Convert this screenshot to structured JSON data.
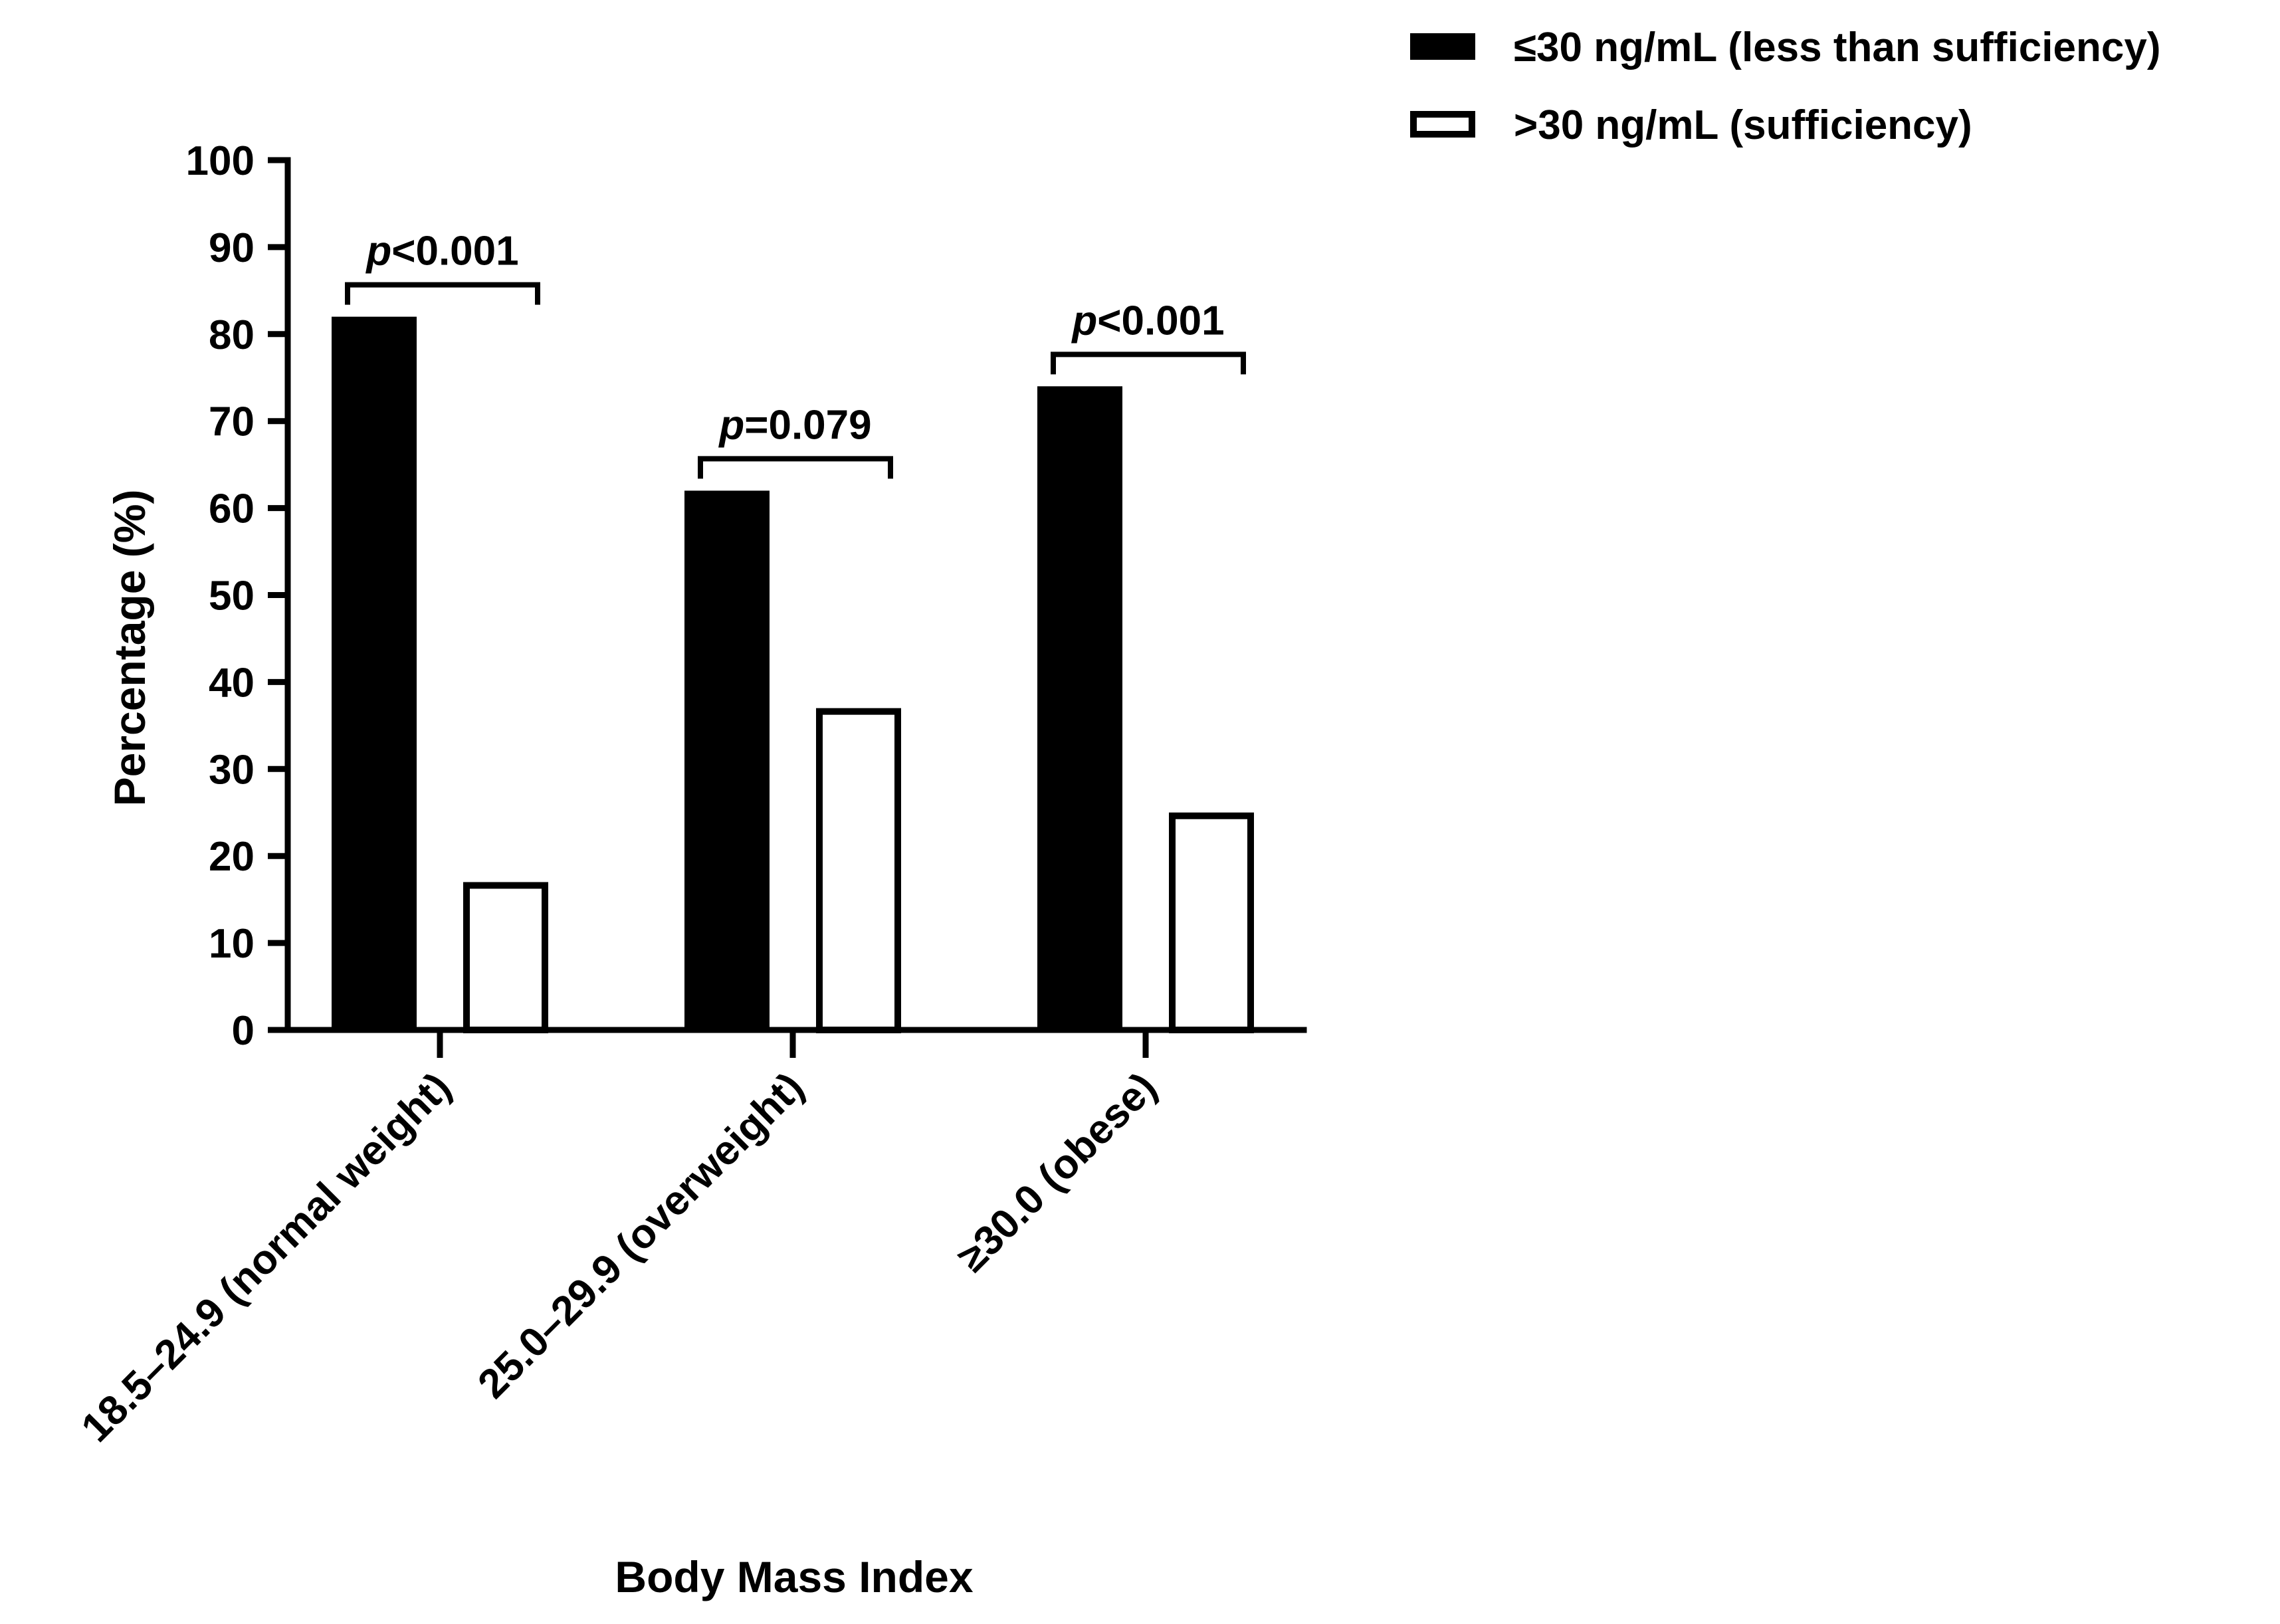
{
  "chart_data": {
    "type": "bar",
    "ylabel": "Percentage (%)",
    "xlabel": "Body Mass Index",
    "ylim": [
      0,
      100
    ],
    "yticks": [
      0,
      10,
      20,
      30,
      40,
      50,
      60,
      70,
      80,
      90,
      100
    ],
    "categories": [
      "18.5–24.9 (normal weight)",
      "25.0–29.9 (overweight)",
      "≥30.0 (obese)"
    ],
    "series": [
      {
        "name": "≤30 ng/mL (less than sufficiency)",
        "values": [
          82,
          62,
          74
        ],
        "fill": "#000000"
      },
      {
        "name": ">30 ng/mL (sufficiency)",
        "values": [
          17,
          37,
          25
        ],
        "fill": "#ffffff"
      }
    ],
    "annotations": [
      {
        "category_index": 0,
        "p_label": "p",
        "p_value": "<0.001"
      },
      {
        "category_index": 1,
        "p_label": "p",
        "p_value": "=0.079"
      },
      {
        "category_index": 2,
        "p_label": "p",
        "p_value": "<0.001"
      }
    ],
    "legend_position": "top-right",
    "grid": false
  }
}
